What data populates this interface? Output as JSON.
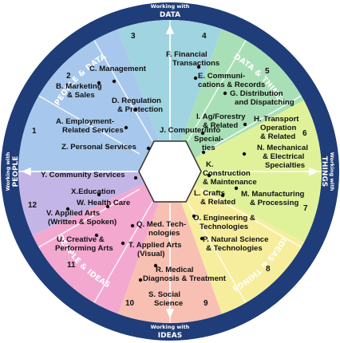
{
  "ring": {
    "top_small": "Working with",
    "top_big": "DATA",
    "bottom_small": "Working with",
    "bottom_big": "IDEAS",
    "left_small": "Working with",
    "left_big": "PEOPLE",
    "right_small": "Working with",
    "right_big": "THINGS",
    "people_data": "PEOPLE & DATA",
    "data_things": "DATA & THINGS",
    "ideas_things": "IDEAS & THINGS",
    "people_ideas": "PEOPLE & IDEAS"
  },
  "regions": [
    "1",
    "2",
    "3",
    "4",
    "5",
    "6",
    "7",
    "8",
    "9",
    "10",
    "11",
    "12"
  ],
  "clusters": {
    "A": [
      "A. Employment-",
      "Related Services"
    ],
    "B": [
      "B. Marketing",
      "& Sales"
    ],
    "C": [
      "C. Management"
    ],
    "D": [
      "D. Regulation",
      "& Protection"
    ],
    "E": [
      "E. Communi-",
      "cations & Records"
    ],
    "F": [
      "F. Financial",
      "Transactions"
    ],
    "G": [
      "G. Distribution",
      "and Dispatching"
    ],
    "H": [
      "H. Transport",
      "Operation",
      "& Related"
    ],
    "I": [
      "I. Ag/Forestry",
      "& Related"
    ],
    "J": [
      "J. Computer/Info",
      "Special-",
      "ties"
    ],
    "K": [
      "K.",
      "Construction",
      "& Maintenance"
    ],
    "L": [
      "L. Crafts",
      "& Related"
    ],
    "M": [
      "M. Manufacturing",
      "& Processing"
    ],
    "N": [
      "N. Mechanical",
      "& Electrical",
      "Specialties"
    ],
    "O": [
      "O. Engineering &",
      "Technologies"
    ],
    "P": [
      "P. Natural Science",
      "& Technologies"
    ],
    "Q": [
      "Q. Med. Tech-",
      "nologies"
    ],
    "R": [
      "R. Medical",
      "Diagnosis & Treatment"
    ],
    "S": [
      "S. Social",
      "Science"
    ],
    "T": [
      "T. Applied Arts",
      "(Visual)"
    ],
    "U": [
      "U. Creative &",
      "Performing Arts"
    ],
    "V": [
      "V. Applied Arts",
      "(Written & Spoken)"
    ],
    "W": [
      "W. Health Care"
    ],
    "X": [
      "X.Education"
    ],
    "Y": [
      "Y. Community Services"
    ],
    "Z": [
      "Z. Personal Services"
    ]
  },
  "colors": {
    "ring": "#1f3d78",
    "people_data": "#a7c8ec",
    "data": "#9fd4e0",
    "data_things": "#a9dfb6",
    "things": "#dff29a",
    "ideas_things": "#f7ee9d",
    "ideas": "#f7c0b3",
    "people_ideas": "#f3a8d0",
    "people": "#c3b6e6"
  }
}
